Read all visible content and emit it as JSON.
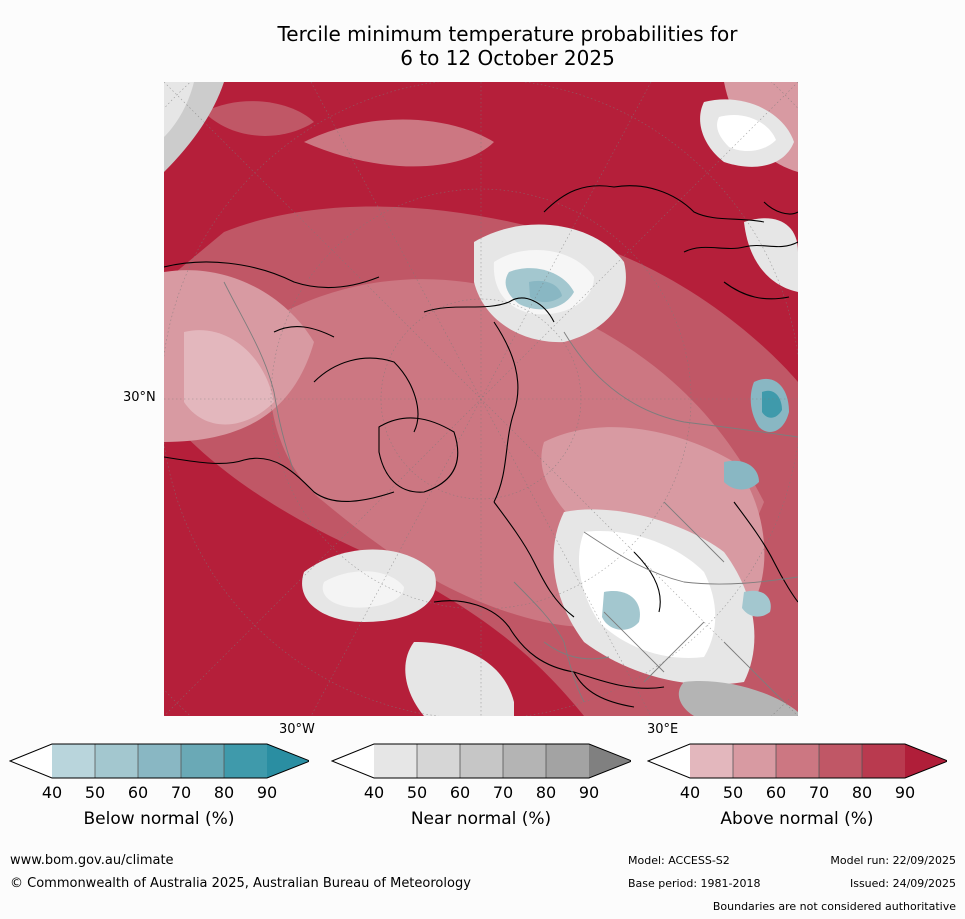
{
  "title": {
    "line1": "Tercile minimum temperature probabilities for",
    "line2": "6 to 12 October 2025"
  },
  "map": {
    "projection": "north polar stereographic",
    "labels": {
      "left_lat": "30°N",
      "bottom_left_lon": "30°W",
      "bottom_right_lon": "30°E"
    }
  },
  "colorbars": [
    {
      "label": "Below normal (%)",
      "ticks": [
        "40",
        "50",
        "60",
        "70",
        "80",
        "90"
      ],
      "colors": [
        "#ffffff",
        "#b9d5dc",
        "#a3c7cf",
        "#89b7c3",
        "#6aa9b6",
        "#3f9aab",
        "#2a8ea2"
      ]
    },
    {
      "label": "Near normal (%)",
      "ticks": [
        "40",
        "50",
        "60",
        "70",
        "80",
        "90"
      ],
      "colors": [
        "#ffffff",
        "#e6e6e6",
        "#d6d6d6",
        "#c6c6c6",
        "#b4b4b4",
        "#a3a3a3",
        "#808080"
      ]
    },
    {
      "label": "Above normal (%)",
      "ticks": [
        "40",
        "50",
        "60",
        "70",
        "80",
        "90"
      ],
      "colors": [
        "#ffffff",
        "#e3b7bd",
        "#d89aa2",
        "#cc7782",
        "#c05766",
        "#b93a4f",
        "#b01e39"
      ]
    }
  ],
  "footer": {
    "website": "www.bom.gov.au/climate",
    "copyright": "© Commonwealth of Australia 2025, Australian Bureau of Meteorology",
    "model": "Model: ACCESS-S2",
    "base_period": "Base period: 1981-2018",
    "model_run": "Model run: 22/09/2025",
    "issued": "Issued: 24/09/2025",
    "disclaimer": "Boundaries are not considered authoritative"
  }
}
